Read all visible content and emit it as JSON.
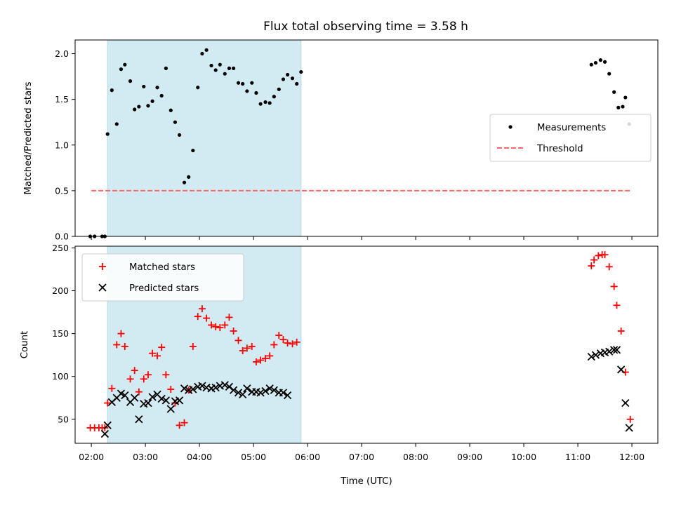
{
  "chart_data": [
    {
      "type": "scatter",
      "title": "Flux total observing time = 3.58 h",
      "ylabel": "Matched/Predicted stars",
      "xlim": [
        1.7,
        12.48
      ],
      "ylim": [
        0,
        2.15
      ],
      "yticks": [
        0.0,
        0.5,
        1.0,
        1.5,
        2.0
      ],
      "ytick_labels": [
        "0.0",
        "0.5",
        "1.0",
        "1.5",
        "2.0"
      ],
      "shaded_interval": [
        2.3,
        5.88
      ],
      "shade_color": "#add8e6",
      "legend_position": "center-right",
      "series": [
        {
          "name": "Measurements",
          "marker": "dot",
          "color": "#000000",
          "points": [
            [
              1.98,
              0.0
            ],
            [
              2.06,
              0.0
            ],
            [
              2.2,
              0.0
            ],
            [
              2.25,
              0.0
            ],
            [
              2.3,
              1.12
            ],
            [
              2.38,
              1.6
            ],
            [
              2.47,
              1.23
            ],
            [
              2.55,
              1.83
            ],
            [
              2.62,
              1.88
            ],
            [
              2.72,
              1.7
            ],
            [
              2.8,
              1.39
            ],
            [
              2.88,
              1.42
            ],
            [
              2.97,
              1.64
            ],
            [
              3.05,
              1.43
            ],
            [
              3.13,
              1.48
            ],
            [
              3.22,
              1.63
            ],
            [
              3.3,
              1.54
            ],
            [
              3.38,
              1.84
            ],
            [
              3.47,
              1.38
            ],
            [
              3.55,
              1.25
            ],
            [
              3.63,
              1.11
            ],
            [
              3.72,
              0.59
            ],
            [
              3.8,
              0.65
            ],
            [
              3.88,
              0.94
            ],
            [
              3.97,
              1.63
            ],
            [
              4.05,
              2.0
            ],
            [
              4.13,
              2.04
            ],
            [
              4.22,
              1.87
            ],
            [
              4.3,
              1.82
            ],
            [
              4.38,
              1.88
            ],
            [
              4.47,
              1.78
            ],
            [
              4.55,
              1.84
            ],
            [
              4.63,
              1.84
            ],
            [
              4.72,
              1.68
            ],
            [
              4.8,
              1.67
            ],
            [
              4.88,
              1.59
            ],
            [
              4.97,
              1.68
            ],
            [
              5.05,
              1.57
            ],
            [
              5.13,
              1.45
            ],
            [
              5.22,
              1.47
            ],
            [
              5.3,
              1.46
            ],
            [
              5.38,
              1.53
            ],
            [
              5.47,
              1.61
            ],
            [
              5.55,
              1.72
            ],
            [
              5.63,
              1.77
            ],
            [
              5.72,
              1.73
            ],
            [
              5.8,
              1.67
            ],
            [
              5.88,
              1.8
            ],
            [
              11.25,
              1.88
            ],
            [
              11.33,
              1.9
            ],
            [
              11.42,
              1.93
            ],
            [
              11.5,
              1.91
            ],
            [
              11.58,
              1.78
            ],
            [
              11.67,
              1.58
            ],
            [
              11.75,
              1.41
            ],
            [
              11.83,
              1.42
            ],
            [
              11.88,
              1.52
            ],
            [
              11.95,
              1.23
            ]
          ]
        },
        {
          "name": "Threshold",
          "style": "dashed",
          "color": "#ff6666",
          "points": [
            [
              2.0,
              0.5
            ],
            [
              12.0,
              0.5
            ]
          ]
        }
      ]
    },
    {
      "type": "scatter",
      "ylabel": "Count",
      "xlabel": "Time (UTC)",
      "xlim": [
        1.7,
        12.48
      ],
      "ylim": [
        22,
        252
      ],
      "yticks": [
        50,
        100,
        150,
        200,
        250
      ],
      "ytick_labels": [
        "50",
        "100",
        "150",
        "200",
        "250"
      ],
      "xticks": [
        2,
        3,
        4,
        5,
        6,
        7,
        8,
        9,
        10,
        11,
        12
      ],
      "xtick_labels": [
        "02:00",
        "03:00",
        "04:00",
        "05:00",
        "06:00",
        "07:00",
        "08:00",
        "09:00",
        "10:00",
        "11:00",
        "12:00"
      ],
      "shaded_interval": [
        2.3,
        5.88
      ],
      "shade_color": "#add8e6",
      "legend_position": "upper-left",
      "series": [
        {
          "name": "Matched stars",
          "marker": "plus",
          "color": "#ff0000",
          "points": [
            [
              1.98,
              40
            ],
            [
              2.06,
              40
            ],
            [
              2.14,
              40
            ],
            [
              2.2,
              40
            ],
            [
              2.25,
              40
            ],
            [
              2.3,
              69
            ],
            [
              2.38,
              86
            ],
            [
              2.47,
              137
            ],
            [
              2.55,
              150
            ],
            [
              2.62,
              135
            ],
            [
              2.72,
              97
            ],
            [
              2.8,
              107
            ],
            [
              2.88,
              82
            ],
            [
              2.97,
              97
            ],
            [
              3.05,
              102
            ],
            [
              3.13,
              127
            ],
            [
              3.22,
              124
            ],
            [
              3.3,
              134
            ],
            [
              3.38,
              102
            ],
            [
              3.47,
              85
            ],
            [
              3.55,
              69
            ],
            [
              3.63,
              43
            ],
            [
              3.72,
              46
            ],
            [
              3.8,
              84
            ],
            [
              3.88,
              135
            ],
            [
              3.97,
              170
            ],
            [
              4.05,
              179
            ],
            [
              4.13,
              168
            ],
            [
              4.22,
              160
            ],
            [
              4.3,
              158
            ],
            [
              4.38,
              157
            ],
            [
              4.47,
              160
            ],
            [
              4.55,
              169
            ],
            [
              4.63,
              153
            ],
            [
              4.72,
              142
            ],
            [
              4.8,
              130
            ],
            [
              4.88,
              133
            ],
            [
              4.97,
              135
            ],
            [
              5.05,
              117
            ],
            [
              5.13,
              119
            ],
            [
              5.22,
              121
            ],
            [
              5.3,
              124
            ],
            [
              5.38,
              137
            ],
            [
              5.47,
              148
            ],
            [
              5.55,
              143
            ],
            [
              5.63,
              139
            ],
            [
              5.72,
              138
            ],
            [
              5.8,
              140
            ],
            [
              11.25,
              229
            ],
            [
              11.3,
              236
            ],
            [
              11.38,
              241
            ],
            [
              11.45,
              242
            ],
            [
              11.5,
              242
            ],
            [
              11.58,
              228
            ],
            [
              11.67,
              205
            ],
            [
              11.72,
              183
            ],
            [
              11.8,
              153
            ],
            [
              11.88,
              105
            ],
            [
              11.97,
              50
            ]
          ]
        },
        {
          "name": "Predicted stars",
          "marker": "x",
          "color": "#000000",
          "points": [
            [
              2.25,
              33
            ],
            [
              2.3,
              43
            ],
            [
              2.38,
              70
            ],
            [
              2.47,
              75
            ],
            [
              2.55,
              80
            ],
            [
              2.62,
              78
            ],
            [
              2.72,
              70
            ],
            [
              2.8,
              75
            ],
            [
              2.88,
              50
            ],
            [
              2.97,
              68
            ],
            [
              3.05,
              69
            ],
            [
              3.13,
              76
            ],
            [
              3.22,
              79
            ],
            [
              3.3,
              74
            ],
            [
              3.38,
              72
            ],
            [
              3.47,
              62
            ],
            [
              3.55,
              71
            ],
            [
              3.63,
              72
            ],
            [
              3.72,
              86
            ],
            [
              3.8,
              84
            ],
            [
              3.88,
              85
            ],
            [
              3.97,
              88
            ],
            [
              4.05,
              89
            ],
            [
              4.13,
              87
            ],
            [
              4.22,
              86
            ],
            [
              4.3,
              87
            ],
            [
              4.38,
              89
            ],
            [
              4.47,
              90
            ],
            [
              4.55,
              88
            ],
            [
              4.63,
              84
            ],
            [
              4.72,
              81
            ],
            [
              4.8,
              79
            ],
            [
              4.88,
              86
            ],
            [
              4.97,
              82
            ],
            [
              5.05,
              82
            ],
            [
              5.13,
              81
            ],
            [
              5.22,
              83
            ],
            [
              5.3,
              86
            ],
            [
              5.38,
              84
            ],
            [
              5.47,
              81
            ],
            [
              5.55,
              81
            ],
            [
              5.63,
              78
            ],
            [
              11.25,
              123
            ],
            [
              11.33,
              125
            ],
            [
              11.42,
              127
            ],
            [
              11.5,
              128
            ],
            [
              11.58,
              129
            ],
            [
              11.67,
              131
            ],
            [
              11.72,
              131
            ],
            [
              11.8,
              108
            ],
            [
              11.88,
              69
            ],
            [
              11.95,
              40
            ]
          ]
        }
      ]
    }
  ]
}
